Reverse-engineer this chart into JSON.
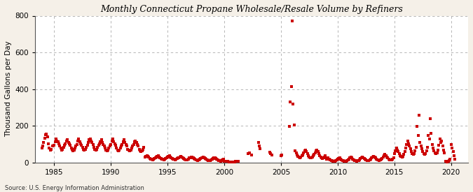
{
  "title": "Monthly Connecticut Propane Wholesale/Resale Volume by Refiners",
  "ylabel": "Thousand Gallons per Day",
  "source": "Source: U.S. Energy Information Administration",
  "background_color": "#f5f0e8",
  "plot_bg_color": "#ffffff",
  "dot_color": "#cc0000",
  "ylim": [
    0,
    800
  ],
  "yticks": [
    0,
    200,
    400,
    600,
    800
  ],
  "xlim_start": 1983.3,
  "xlim_end": 2021.5,
  "xticks": [
    1985,
    1990,
    1995,
    2000,
    2005,
    2010,
    2015,
    2020
  ],
  "data": [
    [
      1983.92,
      80
    ],
    [
      1984.0,
      90
    ],
    [
      1984.08,
      110
    ],
    [
      1984.17,
      130
    ],
    [
      1984.25,
      150
    ],
    [
      1984.33,
      155
    ],
    [
      1984.42,
      140
    ],
    [
      1984.5,
      100
    ],
    [
      1984.58,
      78
    ],
    [
      1984.67,
      68
    ],
    [
      1984.75,
      72
    ],
    [
      1984.83,
      88
    ],
    [
      1985.0,
      95
    ],
    [
      1985.08,
      112
    ],
    [
      1985.17,
      128
    ],
    [
      1985.25,
      118
    ],
    [
      1985.33,
      112
    ],
    [
      1985.42,
      102
    ],
    [
      1985.5,
      88
    ],
    [
      1985.58,
      78
    ],
    [
      1985.67,
      68
    ],
    [
      1985.75,
      72
    ],
    [
      1985.83,
      82
    ],
    [
      1985.92,
      92
    ],
    [
      1986.0,
      100
    ],
    [
      1986.08,
      115
    ],
    [
      1986.17,
      122
    ],
    [
      1986.25,
      108
    ],
    [
      1986.33,
      102
    ],
    [
      1986.42,
      92
    ],
    [
      1986.5,
      78
    ],
    [
      1986.58,
      72
    ],
    [
      1986.67,
      62
    ],
    [
      1986.75,
      68
    ],
    [
      1986.83,
      78
    ],
    [
      1986.92,
      88
    ],
    [
      1987.0,
      98
    ],
    [
      1987.08,
      118
    ],
    [
      1987.17,
      128
    ],
    [
      1987.25,
      112
    ],
    [
      1987.33,
      102
    ],
    [
      1987.42,
      92
    ],
    [
      1987.5,
      82
    ],
    [
      1987.58,
      72
    ],
    [
      1987.67,
      68
    ],
    [
      1987.75,
      72
    ],
    [
      1987.83,
      82
    ],
    [
      1987.92,
      92
    ],
    [
      1988.0,
      108
    ],
    [
      1988.08,
      122
    ],
    [
      1988.17,
      128
    ],
    [
      1988.25,
      118
    ],
    [
      1988.33,
      108
    ],
    [
      1988.42,
      98
    ],
    [
      1988.5,
      82
    ],
    [
      1988.58,
      72
    ],
    [
      1988.67,
      68
    ],
    [
      1988.75,
      72
    ],
    [
      1988.83,
      82
    ],
    [
      1988.92,
      92
    ],
    [
      1989.0,
      102
    ],
    [
      1989.08,
      112
    ],
    [
      1989.17,
      122
    ],
    [
      1989.25,
      108
    ],
    [
      1989.33,
      98
    ],
    [
      1989.42,
      88
    ],
    [
      1989.5,
      78
    ],
    [
      1989.58,
      68
    ],
    [
      1989.67,
      62
    ],
    [
      1989.75,
      68
    ],
    [
      1989.83,
      78
    ],
    [
      1989.92,
      88
    ],
    [
      1990.0,
      98
    ],
    [
      1990.08,
      118
    ],
    [
      1990.17,
      128
    ],
    [
      1990.25,
      112
    ],
    [
      1990.33,
      102
    ],
    [
      1990.42,
      92
    ],
    [
      1990.5,
      78
    ],
    [
      1990.58,
      68
    ],
    [
      1990.67,
      62
    ],
    [
      1990.75,
      68
    ],
    [
      1990.83,
      78
    ],
    [
      1990.92,
      88
    ],
    [
      1991.0,
      98
    ],
    [
      1991.08,
      112
    ],
    [
      1991.17,
      122
    ],
    [
      1991.25,
      108
    ],
    [
      1991.33,
      98
    ],
    [
      1991.42,
      88
    ],
    [
      1991.5,
      72
    ],
    [
      1991.58,
      68
    ],
    [
      1991.67,
      62
    ],
    [
      1991.75,
      68
    ],
    [
      1991.83,
      78
    ],
    [
      1991.92,
      88
    ],
    [
      1992.0,
      98
    ],
    [
      1992.08,
      112
    ],
    [
      1992.17,
      118
    ],
    [
      1992.25,
      108
    ],
    [
      1992.33,
      98
    ],
    [
      1992.42,
      88
    ],
    [
      1992.5,
      72
    ],
    [
      1992.58,
      62
    ],
    [
      1992.67,
      58
    ],
    [
      1992.75,
      62
    ],
    [
      1992.83,
      72
    ],
    [
      1992.92,
      82
    ],
    [
      1993.0,
      28
    ],
    [
      1993.08,
      32
    ],
    [
      1993.17,
      38
    ],
    [
      1993.25,
      32
    ],
    [
      1993.33,
      28
    ],
    [
      1993.42,
      22
    ],
    [
      1993.5,
      18
    ],
    [
      1993.58,
      16
    ],
    [
      1993.67,
      13
    ],
    [
      1993.75,
      16
    ],
    [
      1993.83,
      20
    ],
    [
      1993.92,
      26
    ],
    [
      1994.0,
      28
    ],
    [
      1994.08,
      32
    ],
    [
      1994.17,
      36
    ],
    [
      1994.25,
      30
    ],
    [
      1994.33,
      26
    ],
    [
      1994.42,
      22
    ],
    [
      1994.5,
      18
    ],
    [
      1994.58,
      16
    ],
    [
      1994.67,
      13
    ],
    [
      1994.75,
      16
    ],
    [
      1994.83,
      20
    ],
    [
      1994.92,
      25
    ],
    [
      1995.0,
      28
    ],
    [
      1995.08,
      32
    ],
    [
      1995.17,
      36
    ],
    [
      1995.25,
      30
    ],
    [
      1995.33,
      26
    ],
    [
      1995.42,
      22
    ],
    [
      1995.5,
      18
    ],
    [
      1995.58,
      16
    ],
    [
      1995.67,
      13
    ],
    [
      1995.75,
      16
    ],
    [
      1995.83,
      20
    ],
    [
      1995.92,
      25
    ],
    [
      1996.0,
      26
    ],
    [
      1996.08,
      30
    ],
    [
      1996.17,
      33
    ],
    [
      1996.25,
      28
    ],
    [
      1996.33,
      23
    ],
    [
      1996.42,
      20
    ],
    [
      1996.5,
      16
    ],
    [
      1996.58,
      14
    ],
    [
      1996.67,
      12
    ],
    [
      1996.75,
      14
    ],
    [
      1996.83,
      18
    ],
    [
      1996.92,
      23
    ],
    [
      1997.0,
      26
    ],
    [
      1997.08,
      28
    ],
    [
      1997.17,
      30
    ],
    [
      1997.25,
      26
    ],
    [
      1997.33,
      22
    ],
    [
      1997.42,
      18
    ],
    [
      1997.5,
      14
    ],
    [
      1997.58,
      12
    ],
    [
      1997.67,
      10
    ],
    [
      1997.75,
      12
    ],
    [
      1997.83,
      16
    ],
    [
      1997.92,
      20
    ],
    [
      1998.0,
      23
    ],
    [
      1998.08,
      26
    ],
    [
      1998.17,
      28
    ],
    [
      1998.25,
      24
    ],
    [
      1998.33,
      20
    ],
    [
      1998.42,
      16
    ],
    [
      1998.5,
      13
    ],
    [
      1998.58,
      11
    ],
    [
      1998.67,
      9
    ],
    [
      1998.75,
      11
    ],
    [
      1998.83,
      14
    ],
    [
      1998.92,
      18
    ],
    [
      1999.0,
      20
    ],
    [
      1999.08,
      23
    ],
    [
      1999.17,
      26
    ],
    [
      1999.25,
      22
    ],
    [
      1999.33,
      18
    ],
    [
      1999.42,
      14
    ],
    [
      1999.5,
      11
    ],
    [
      1999.58,
      9
    ],
    [
      1999.67,
      7
    ],
    [
      1999.75,
      9
    ],
    [
      1999.83,
      12
    ],
    [
      1999.92,
      16
    ],
    [
      2000.0,
      4
    ],
    [
      2000.08,
      5
    ],
    [
      2000.17,
      6
    ],
    [
      2000.25,
      5
    ],
    [
      2000.33,
      4
    ],
    [
      2000.42,
      3
    ],
    [
      2000.5,
      2
    ],
    [
      2000.58,
      2
    ],
    [
      2000.67,
      1
    ],
    [
      2000.75,
      2
    ],
    [
      2000.83,
      2
    ],
    [
      2000.92,
      3
    ],
    [
      2001.0,
      4
    ],
    [
      2001.08,
      5
    ],
    [
      2001.17,
      5
    ],
    [
      2001.25,
      4
    ],
    [
      2002.08,
      48
    ],
    [
      2002.25,
      52
    ],
    [
      2002.42,
      42
    ],
    [
      2003.0,
      108
    ],
    [
      2003.08,
      90
    ],
    [
      2003.17,
      75
    ],
    [
      2004.0,
      55
    ],
    [
      2004.08,
      48
    ],
    [
      2004.17,
      42
    ],
    [
      2005.0,
      38
    ],
    [
      2005.08,
      42
    ],
    [
      2005.75,
      195
    ],
    [
      2005.83,
      330
    ],
    [
      2005.92,
      415
    ],
    [
      2006.0,
      770
    ],
    [
      2006.08,
      320
    ],
    [
      2006.17,
      205
    ],
    [
      2006.25,
      62
    ],
    [
      2006.33,
      52
    ],
    [
      2006.42,
      42
    ],
    [
      2006.5,
      32
    ],
    [
      2006.58,
      28
    ],
    [
      2006.67,
      26
    ],
    [
      2006.75,
      30
    ],
    [
      2006.83,
      36
    ],
    [
      2006.92,
      42
    ],
    [
      2007.0,
      52
    ],
    [
      2007.08,
      62
    ],
    [
      2007.17,
      68
    ],
    [
      2007.25,
      58
    ],
    [
      2007.33,
      48
    ],
    [
      2007.42,
      38
    ],
    [
      2007.5,
      30
    ],
    [
      2007.58,
      26
    ],
    [
      2007.67,
      23
    ],
    [
      2007.75,
      28
    ],
    [
      2007.83,
      36
    ],
    [
      2007.92,
      43
    ],
    [
      2008.0,
      52
    ],
    [
      2008.08,
      62
    ],
    [
      2008.17,
      68
    ],
    [
      2008.25,
      58
    ],
    [
      2008.33,
      48
    ],
    [
      2008.42,
      38
    ],
    [
      2008.5,
      28
    ],
    [
      2008.58,
      23
    ],
    [
      2008.67,
      20
    ],
    [
      2008.75,
      24
    ],
    [
      2008.83,
      30
    ],
    [
      2008.92,
      38
    ],
    [
      2009.0,
      16
    ],
    [
      2009.08,
      20
    ],
    [
      2009.17,
      23
    ],
    [
      2009.25,
      18
    ],
    [
      2009.33,
      14
    ],
    [
      2009.42,
      10
    ],
    [
      2009.5,
      8
    ],
    [
      2009.58,
      6
    ],
    [
      2009.67,
      5
    ],
    [
      2009.75,
      6
    ],
    [
      2009.83,
      8
    ],
    [
      2009.92,
      12
    ],
    [
      2010.0,
      16
    ],
    [
      2010.08,
      20
    ],
    [
      2010.17,
      23
    ],
    [
      2010.25,
      18
    ],
    [
      2010.33,
      14
    ],
    [
      2010.42,
      10
    ],
    [
      2010.5,
      8
    ],
    [
      2010.58,
      6
    ],
    [
      2010.67,
      5
    ],
    [
      2010.75,
      6
    ],
    [
      2010.83,
      8
    ],
    [
      2010.92,
      12
    ],
    [
      2011.0,
      18
    ],
    [
      2011.08,
      23
    ],
    [
      2011.17,
      28
    ],
    [
      2011.25,
      23
    ],
    [
      2011.33,
      18
    ],
    [
      2011.42,
      13
    ],
    [
      2011.5,
      10
    ],
    [
      2011.58,
      8
    ],
    [
      2011.67,
      6
    ],
    [
      2011.75,
      8
    ],
    [
      2011.83,
      10
    ],
    [
      2011.92,
      14
    ],
    [
      2012.0,
      20
    ],
    [
      2012.08,
      26
    ],
    [
      2012.17,
      30
    ],
    [
      2012.25,
      26
    ],
    [
      2012.33,
      20
    ],
    [
      2012.42,
      16
    ],
    [
      2012.5,
      12
    ],
    [
      2012.58,
      10
    ],
    [
      2012.67,
      8
    ],
    [
      2012.75,
      10
    ],
    [
      2012.83,
      13
    ],
    [
      2012.92,
      18
    ],
    [
      2013.0,
      23
    ],
    [
      2013.08,
      28
    ],
    [
      2013.17,
      33
    ],
    [
      2013.25,
      28
    ],
    [
      2013.33,
      23
    ],
    [
      2013.42,
      18
    ],
    [
      2013.5,
      14
    ],
    [
      2013.58,
      12
    ],
    [
      2013.67,
      10
    ],
    [
      2013.75,
      12
    ],
    [
      2013.83,
      16
    ],
    [
      2013.92,
      22
    ],
    [
      2014.0,
      28
    ],
    [
      2014.08,
      36
    ],
    [
      2014.17,
      43
    ],
    [
      2014.25,
      36
    ],
    [
      2014.33,
      28
    ],
    [
      2014.42,
      23
    ],
    [
      2014.5,
      18
    ],
    [
      2014.58,
      14
    ],
    [
      2014.67,
      12
    ],
    [
      2014.75,
      14
    ],
    [
      2014.83,
      18
    ],
    [
      2014.92,
      26
    ],
    [
      2015.0,
      48
    ],
    [
      2015.08,
      62
    ],
    [
      2015.17,
      78
    ],
    [
      2015.25,
      68
    ],
    [
      2015.33,
      58
    ],
    [
      2015.42,
      48
    ],
    [
      2015.5,
      38
    ],
    [
      2015.58,
      33
    ],
    [
      2015.67,
      28
    ],
    [
      2015.75,
      33
    ],
    [
      2015.83,
      43
    ],
    [
      2015.92,
      58
    ],
    [
      2016.0,
      78
    ],
    [
      2016.08,
      98
    ],
    [
      2016.17,
      118
    ],
    [
      2016.25,
      102
    ],
    [
      2016.33,
      88
    ],
    [
      2016.42,
      73
    ],
    [
      2016.5,
      58
    ],
    [
      2016.58,
      48
    ],
    [
      2016.67,
      43
    ],
    [
      2016.75,
      48
    ],
    [
      2016.83,
      63
    ],
    [
      2016.92,
      83
    ],
    [
      2017.0,
      198
    ],
    [
      2017.08,
      148
    ],
    [
      2017.17,
      258
    ],
    [
      2017.25,
      108
    ],
    [
      2017.33,
      88
    ],
    [
      2017.42,
      73
    ],
    [
      2017.5,
      58
    ],
    [
      2017.58,
      48
    ],
    [
      2017.67,
      43
    ],
    [
      2017.75,
      48
    ],
    [
      2017.83,
      63
    ],
    [
      2017.92,
      83
    ],
    [
      2018.0,
      148
    ],
    [
      2018.08,
      128
    ],
    [
      2018.17,
      238
    ],
    [
      2018.25,
      158
    ],
    [
      2018.33,
      98
    ],
    [
      2018.42,
      78
    ],
    [
      2018.5,
      63
    ],
    [
      2018.58,
      53
    ],
    [
      2018.67,
      48
    ],
    [
      2018.75,
      53
    ],
    [
      2018.83,
      68
    ],
    [
      2018.92,
      93
    ],
    [
      2019.0,
      128
    ],
    [
      2019.08,
      108
    ],
    [
      2019.17,
      118
    ],
    [
      2019.25,
      88
    ],
    [
      2019.33,
      68
    ],
    [
      2019.42,
      53
    ],
    [
      2019.5,
      6
    ],
    [
      2019.58,
      4
    ],
    [
      2019.67,
      3
    ],
    [
      2019.75,
      4
    ],
    [
      2019.83,
      8
    ],
    [
      2019.92,
      16
    ],
    [
      2020.0,
      98
    ],
    [
      2020.08,
      78
    ],
    [
      2020.17,
      58
    ],
    [
      2020.25,
      38
    ],
    [
      2020.33,
      18
    ]
  ]
}
